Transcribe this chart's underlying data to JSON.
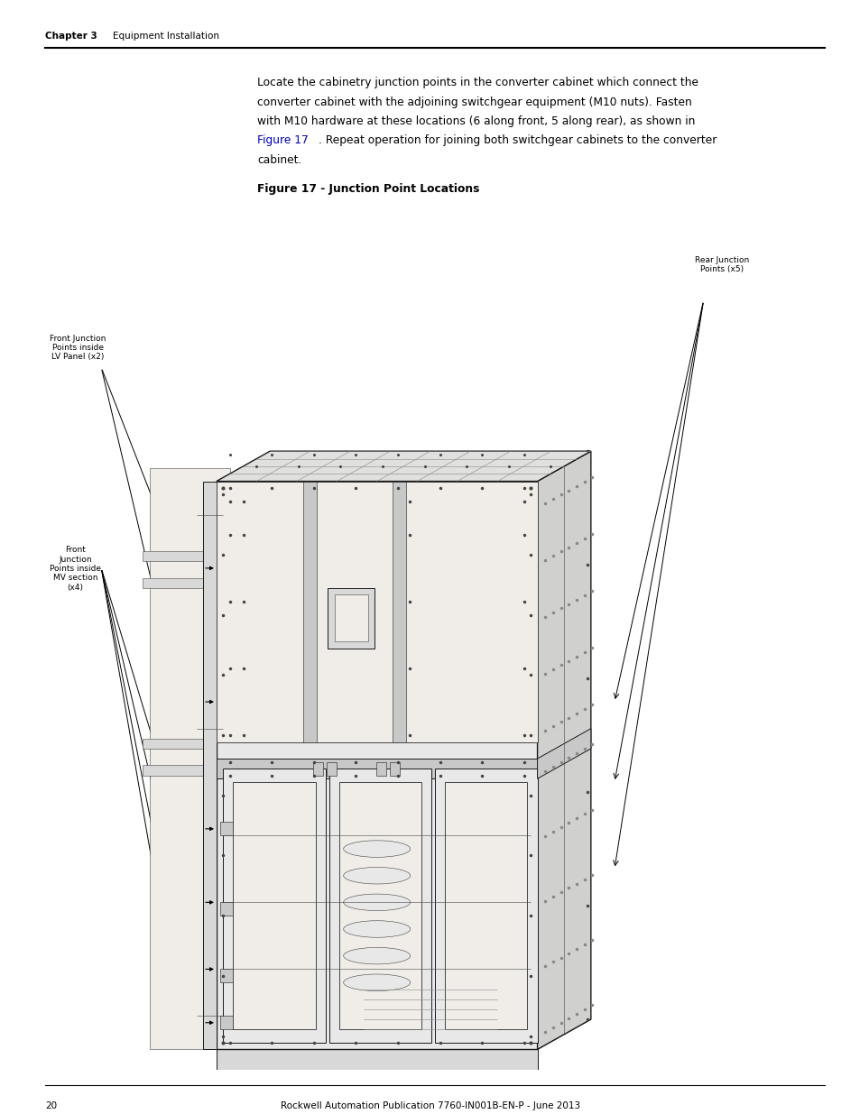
{
  "background_color": "#ffffff",
  "page_width": 9.54,
  "page_height": 12.35,
  "dpi": 100,
  "header_chapter": "Chapter 3",
  "header_section": "Equipment Installation",
  "footer_page": "20",
  "footer_pub": "Rockwell Automation Publication 7760-IN001B-EN-P - June 2013",
  "figure_caption": "Figure 17 - Junction Point Locations",
  "link_color": "#0000bb",
  "text_color": "#000000",
  "line1": "Locate the cabinetry junction points in the converter cabinet which connect the",
  "line2": "converter cabinet with the adjoining switchgear equipment (M10 nuts). Fasten",
  "line3": "with M10 hardware at these locations (6 along front, 5 along rear), as shown in",
  "line4a": "Figure 17",
  "line4b": ". Repeat operation for joining both switchgear cabinets to the converter",
  "line5": "cabinet.",
  "label_rear": "Rear Junction\nPoints (x5)",
  "label_lv": "Front Junction\nPoints inside\nLV Panel (x2)",
  "label_mv": "Front\nJunction\nPoints inside\nMV section\n(x4)"
}
